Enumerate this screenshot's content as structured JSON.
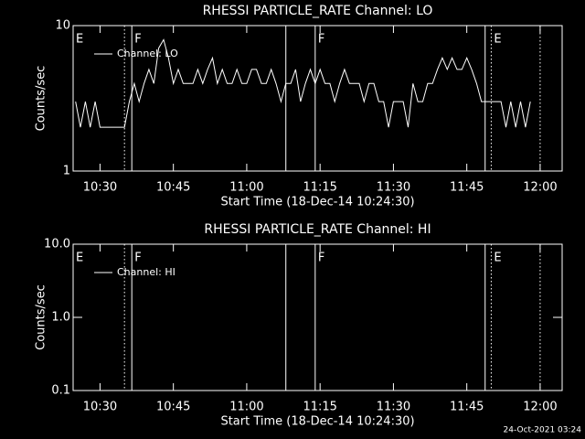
{
  "chart_data": [
    {
      "type": "line",
      "title": "RHESSI PARTICLE_RATE Channel: LO",
      "xlabel": "Start Time (18-Dec-14 10:24:30)",
      "ylabel": "Counts/sec",
      "x": [
        "10:25",
        "10:26",
        "10:27",
        "10:28",
        "10:29",
        "10:30",
        "10:31",
        "10:32",
        "10:33",
        "10:34",
        "10:35",
        "10:36",
        "10:37",
        "10:38",
        "10:39",
        "10:40",
        "10:41",
        "10:42",
        "10:43",
        "10:44",
        "10:45",
        "10:46",
        "10:47",
        "10:48",
        "10:49",
        "10:50",
        "10:51",
        "10:52",
        "10:53",
        "10:54",
        "10:55",
        "10:56",
        "10:57",
        "10:58",
        "10:59",
        "11:00",
        "11:01",
        "11:02",
        "11:03",
        "11:04",
        "11:05",
        "11:06",
        "11:07",
        "11:08",
        "11:09",
        "11:10",
        "11:11",
        "11:12",
        "11:13",
        "11:14",
        "11:15",
        "11:16",
        "11:17",
        "11:18",
        "11:19",
        "11:20",
        "11:21",
        "11:22",
        "11:23",
        "11:24",
        "11:25",
        "11:26",
        "11:27",
        "11:28",
        "11:29",
        "11:30",
        "11:31",
        "11:32",
        "11:33",
        "11:34",
        "11:35",
        "11:36",
        "11:37",
        "11:38",
        "11:39",
        "11:40",
        "11:41",
        "11:42",
        "11:43",
        "11:44",
        "11:45",
        "11:46",
        "11:47",
        "11:48",
        "11:49",
        "11:50",
        "11:51",
        "11:52",
        "11:53",
        "11:54",
        "11:55",
        "11:56",
        "11:57",
        "11:58"
      ],
      "series": [
        {
          "name": "Channel: LO",
          "color": "#ffffff",
          "values": [
            3,
            2,
            3,
            2,
            3,
            2,
            2,
            2,
            2,
            2,
            2,
            3,
            4,
            3,
            4,
            5,
            4,
            7,
            8,
            6,
            4,
            5,
            4,
            4,
            4,
            5,
            4,
            5,
            6,
            4,
            5,
            4,
            4,
            5,
            4,
            4,
            5,
            5,
            4,
            4,
            5,
            4,
            3,
            4,
            4,
            5,
            3,
            4,
            5,
            4,
            5,
            4,
            4,
            3,
            4,
            5,
            4,
            4,
            4,
            3,
            4,
            4,
            3,
            3,
            2,
            3,
            3,
            3,
            2,
            4,
            3,
            3,
            4,
            4,
            5,
            6,
            5,
            6,
            5,
            5,
            6,
            5,
            4,
            3,
            3,
            3,
            3,
            3,
            2,
            3,
            2,
            3,
            2,
            3
          ]
        }
      ],
      "xlim": [
        "10:24:30",
        "12:04:30"
      ],
      "xticks": [
        "10:30",
        "10:45",
        "11:00",
        "11:15",
        "11:30",
        "11:45",
        "12:00"
      ],
      "ylim": [
        1,
        10
      ],
      "yticks": [
        1,
        10
      ],
      "log_y": true,
      "lines": [
        {
          "x": "10:35",
          "style": "dotted"
        },
        {
          "x": "10:36:30",
          "style": "solid"
        },
        {
          "x": "11:08",
          "style": "solid"
        },
        {
          "x": "11:14",
          "style": "solid"
        },
        {
          "x": "11:48:45",
          "style": "solid"
        },
        {
          "x": "11:50",
          "style": "dotted"
        },
        {
          "x": "12:00",
          "style": "dotted"
        }
      ],
      "flags": [
        {
          "x": "10:24:30",
          "label": "E"
        },
        {
          "x": "10:36:30",
          "label": "F"
        },
        {
          "x": "11:14",
          "label": "F"
        },
        {
          "x": "11:50",
          "label": "E"
        }
      ]
    },
    {
      "type": "line",
      "title": "RHESSI PARTICLE_RATE Channel: HI",
      "xlabel": "Start Time (18-Dec-14 10:24:30)",
      "ylabel": "Counts/sec",
      "x": [],
      "series": [
        {
          "name": "Channel: HI",
          "color": "#ffffff",
          "values": []
        }
      ],
      "xlim": [
        "10:24:30",
        "12:04:30"
      ],
      "xticks": [
        "10:30",
        "10:45",
        "11:00",
        "11:15",
        "11:30",
        "11:45",
        "12:00"
      ],
      "ylim": [
        0.1,
        10
      ],
      "yticks": [
        0.1,
        {
          "value": 1,
          "label": "1.0"
        },
        {
          "value": 10,
          "label": "10.0"
        }
      ],
      "log_y": true,
      "lines": [
        {
          "x": "10:35",
          "style": "dotted"
        },
        {
          "x": "10:36:30",
          "style": "solid"
        },
        {
          "x": "11:08",
          "style": "solid"
        },
        {
          "x": "11:14",
          "style": "solid"
        },
        {
          "x": "11:48:45",
          "style": "solid"
        },
        {
          "x": "11:50",
          "style": "dotted"
        },
        {
          "x": "12:00",
          "style": "dotted"
        }
      ],
      "flags": [
        {
          "x": "10:24:30",
          "label": "E"
        },
        {
          "x": "10:36:30",
          "label": "F"
        },
        {
          "x": "11:14",
          "label": "F"
        },
        {
          "x": "11:50",
          "label": "E"
        }
      ]
    }
  ],
  "footer": "24-Oct-2021 03:24"
}
